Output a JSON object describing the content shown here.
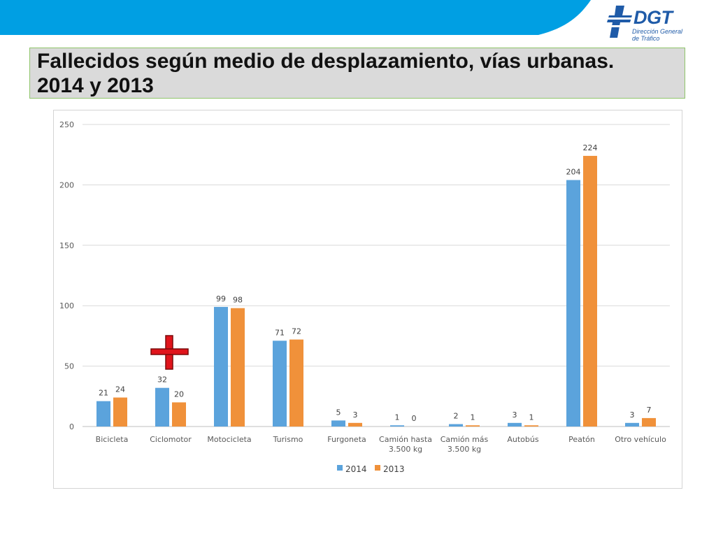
{
  "header": {
    "logo_text": "DGT",
    "logo_subtitle_line1": "Dirección General",
    "logo_subtitle_line2": "de Tráfico",
    "band_color": "#009fe3"
  },
  "slide": {
    "title": "Fallecidos según medio de desplazamiento, vías urbanas. 2014 y 2013"
  },
  "chart_data": {
    "type": "bar",
    "categories": [
      "Bicicleta",
      "Ciclomotor",
      "Motocicleta",
      "Turismo",
      "Furgoneta",
      [
        "Camión hasta",
        "3.500 kg"
      ],
      [
        "Camión más",
        "3.500 kg"
      ],
      "Autobús",
      "Peatón",
      "Otro vehículo"
    ],
    "series": [
      {
        "name": "2014",
        "color": "#5ba3dc",
        "values": [
          21,
          32,
          99,
          71,
          5,
          1,
          2,
          3,
          204,
          3
        ]
      },
      {
        "name": "2013",
        "color": "#f0913a",
        "values": [
          24,
          20,
          98,
          72,
          3,
          0,
          1,
          1,
          224,
          7
        ]
      }
    ],
    "ylim": [
      0,
      250
    ],
    "yticks": [
      0,
      50,
      100,
      150,
      200,
      250
    ],
    "grid": true,
    "legend_position": "bottom"
  }
}
